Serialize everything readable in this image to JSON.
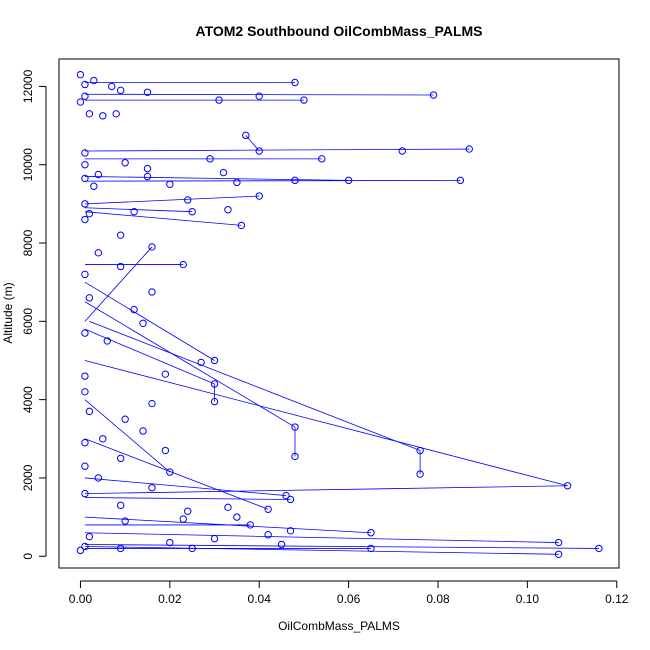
{
  "chart_data": {
    "type": "scatter",
    "title": "ATOM2 Southbound OilCombMass_PALMS",
    "xlabel": "OilCombMass_PALMS",
    "ylabel": "Altitude (m)",
    "xlim": [
      -0.0048,
      0.1205
    ],
    "ylim": [
      -300,
      12700
    ],
    "x_ticks": [
      0.0,
      0.02,
      0.04,
      0.06,
      0.08,
      0.1,
      0.12
    ],
    "x_tick_labels": [
      "0.00",
      "0.02",
      "0.04",
      "0.06",
      "0.08",
      "0.10",
      "0.12"
    ],
    "y_ticks": [
      0,
      2000,
      4000,
      6000,
      8000,
      10000,
      12000
    ],
    "y_tick_labels": [
      "0",
      "2000",
      "4000",
      "6000",
      "8000",
      "10000",
      "12000"
    ],
    "grid": false,
    "series_color": "#0000ff",
    "series": [
      {
        "points": [
          [
            0.0,
            12300
          ],
          [
            0.003,
            12150
          ],
          [
            0.048,
            12100
          ],
          [
            0.001,
            12050
          ],
          [
            0.007,
            12000
          ],
          [
            0.009,
            11900
          ],
          [
            0.015,
            11850
          ],
          [
            0.079,
            11780
          ],
          [
            0.001,
            11750
          ],
          [
            0.04,
            11750
          ],
          [
            0.05,
            11650
          ],
          [
            0.031,
            11650
          ],
          [
            0.0,
            11600
          ],
          [
            0.008,
            11300
          ],
          [
            0.002,
            11300
          ],
          [
            0.005,
            11250
          ],
          [
            0.037,
            10750
          ],
          [
            0.04,
            10350
          ],
          [
            0.087,
            10400
          ],
          [
            0.072,
            10350
          ],
          [
            0.001,
            10300
          ],
          [
            0.054,
            10150
          ],
          [
            0.029,
            10150
          ],
          [
            0.01,
            10050
          ],
          [
            0.001,
            10000
          ],
          [
            0.015,
            9900
          ],
          [
            0.032,
            9800
          ],
          [
            0.004,
            9750
          ],
          [
            0.015,
            9700
          ],
          [
            0.001,
            9650
          ],
          [
            0.048,
            9600
          ],
          [
            0.085,
            9600
          ],
          [
            0.06,
            9600
          ],
          [
            0.035,
            9550
          ],
          [
            0.02,
            9500
          ],
          [
            0.003,
            9450
          ],
          [
            0.04,
            9200
          ],
          [
            0.024,
            9100
          ],
          [
            0.001,
            9000
          ],
          [
            0.033,
            8850
          ],
          [
            0.025,
            8800
          ],
          [
            0.012,
            8800
          ],
          [
            0.002,
            8750
          ],
          [
            0.001,
            8600
          ],
          [
            0.036,
            8450
          ],
          [
            0.009,
            8200
          ],
          [
            0.016,
            7900
          ],
          [
            0.004,
            7750
          ],
          [
            0.023,
            7450
          ],
          [
            0.009,
            7400
          ],
          [
            0.001,
            7200
          ],
          [
            0.016,
            6750
          ],
          [
            0.002,
            6600
          ],
          [
            0.012,
            6300
          ],
          [
            0.014,
            5950
          ],
          [
            0.001,
            5700
          ],
          [
            0.006,
            5500
          ],
          [
            0.03,
            5000
          ],
          [
            0.027,
            4950
          ],
          [
            0.019,
            4650
          ],
          [
            0.001,
            4600
          ],
          [
            0.03,
            4400
          ],
          [
            0.001,
            4200
          ],
          [
            0.03,
            3950
          ],
          [
            0.016,
            3900
          ],
          [
            0.002,
            3700
          ],
          [
            0.01,
            3500
          ],
          [
            0.048,
            3300
          ],
          [
            0.014,
            3200
          ],
          [
            0.005,
            3000
          ],
          [
            0.001,
            2900
          ],
          [
            0.076,
            2700
          ],
          [
            0.019,
            2700
          ],
          [
            0.048,
            2550
          ],
          [
            0.009,
            2500
          ],
          [
            0.001,
            2300
          ],
          [
            0.02,
            2150
          ],
          [
            0.076,
            2100
          ],
          [
            0.004,
            2000
          ],
          [
            0.109,
            1800
          ],
          [
            0.016,
            1750
          ],
          [
            0.001,
            1600
          ],
          [
            0.046,
            1550
          ],
          [
            0.047,
            1450
          ],
          [
            0.009,
            1300
          ],
          [
            0.033,
            1250
          ],
          [
            0.042,
            1200
          ],
          [
            0.024,
            1150
          ],
          [
            0.035,
            1000
          ],
          [
            0.023,
            950
          ],
          [
            0.01,
            900
          ],
          [
            0.038,
            800
          ],
          [
            0.047,
            650
          ],
          [
            0.065,
            600
          ],
          [
            0.042,
            550
          ],
          [
            0.002,
            500
          ],
          [
            0.03,
            450
          ],
          [
            0.107,
            350
          ],
          [
            0.02,
            350
          ],
          [
            0.045,
            300
          ],
          [
            0.001,
            250
          ],
          [
            0.116,
            200
          ],
          [
            0.065,
            200
          ],
          [
            0.025,
            200
          ],
          [
            0.009,
            200
          ],
          [
            0.107,
            50
          ],
          [
            0.0,
            150
          ]
        ],
        "segments": [
          [
            [
              0.001,
              12100
            ],
            [
              0.048,
              12100
            ]
          ],
          [
            [
              0.001,
              11800
            ],
            [
              0.079,
              11780
            ]
          ],
          [
            [
              0.001,
              11650
            ],
            [
              0.05,
              11650
            ]
          ],
          [
            [
              0.001,
              10350
            ],
            [
              0.087,
              10400
            ]
          ],
          [
            [
              0.001,
              10150
            ],
            [
              0.054,
              10150
            ]
          ],
          [
            [
              0.001,
              9580
            ],
            [
              0.085,
              9600
            ]
          ],
          [
            [
              0.001,
              9000
            ],
            [
              0.04,
              9200
            ]
          ],
          [
            [
              0.001,
              8800
            ],
            [
              0.036,
              8450
            ]
          ],
          [
            [
              0.001,
              7450
            ],
            [
              0.023,
              7450
            ]
          ],
          [
            [
              0.001,
              7000
            ],
            [
              0.03,
              5000
            ]
          ],
          [
            [
              0.001,
              6500
            ],
            [
              0.048,
              3300
            ]
          ],
          [
            [
              0.048,
              3300
            ],
            [
              0.048,
              2550
            ]
          ],
          [
            [
              0.002,
              6000
            ],
            [
              0.076,
              2700
            ]
          ],
          [
            [
              0.076,
              2700
            ],
            [
              0.076,
              2100
            ]
          ],
          [
            [
              0.001,
              5800
            ],
            [
              0.03,
              4400
            ]
          ],
          [
            [
              0.03,
              4400
            ],
            [
              0.03,
              3950
            ]
          ],
          [
            [
              0.001,
              5000
            ],
            [
              0.109,
              1800
            ]
          ],
          [
            [
              0.109,
              1800
            ],
            [
              0.001,
              1600
            ]
          ],
          [
            [
              0.001,
              1500
            ],
            [
              0.047,
              1450
            ]
          ],
          [
            [
              0.001,
              1000
            ],
            [
              0.065,
              600
            ]
          ],
          [
            [
              0.001,
              600
            ],
            [
              0.107,
              350
            ]
          ],
          [
            [
              0.001,
              300
            ],
            [
              0.116,
              200
            ]
          ],
          [
            [
              0.001,
              250
            ],
            [
              0.107,
              50
            ]
          ],
          [
            [
              0.001,
              200
            ],
            [
              0.065,
              200
            ]
          ],
          [
            [
              0.04,
              10350
            ],
            [
              0.037,
              10750
            ]
          ],
          [
            [
              0.001,
              9700
            ],
            [
              0.06,
              9600
            ]
          ],
          [
            [
              0.001,
              8900
            ],
            [
              0.025,
              8800
            ]
          ],
          [
            [
              0.001,
              4000
            ],
            [
              0.02,
              2150
            ]
          ],
          [
            [
              0.001,
              3000
            ],
            [
              0.042,
              1200
            ]
          ],
          [
            [
              0.001,
              2000
            ],
            [
              0.046,
              1550
            ]
          ],
          [
            [
              0.001,
              800
            ],
            [
              0.038,
              800
            ]
          ],
          [
            [
              0.016,
              7900
            ],
            [
              0.001,
              6000
            ]
          ]
        ]
      }
    ]
  }
}
